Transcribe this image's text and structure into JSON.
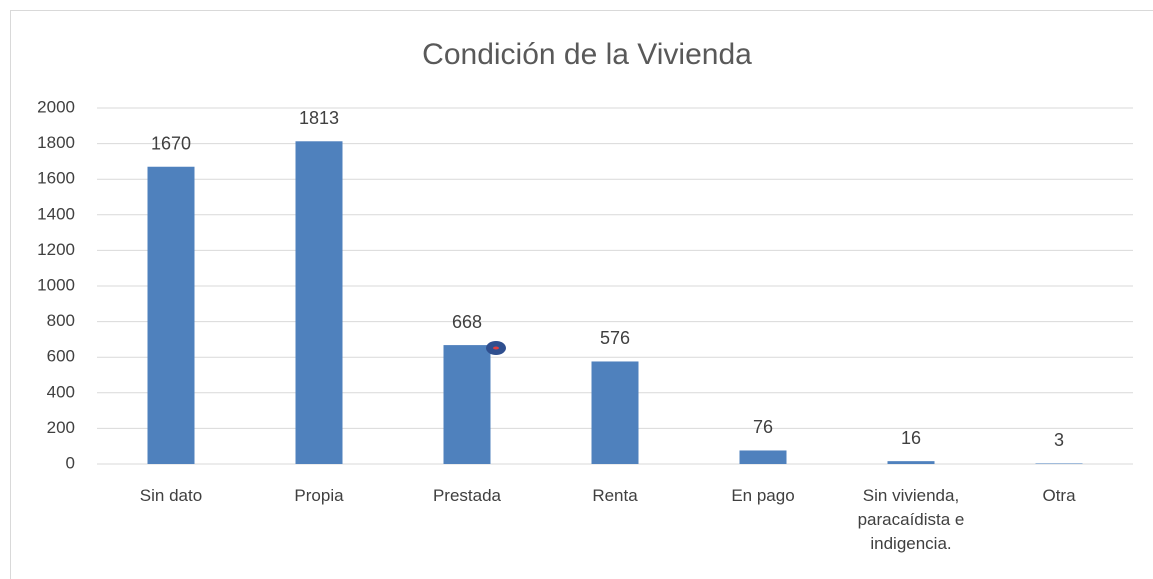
{
  "chart_data": {
    "type": "bar",
    "title": "Condición de la Vivienda",
    "categories": [
      "Sin dato",
      "Propia",
      "Prestada",
      "Renta",
      "En pago",
      "Sin vivienda, paracaídista e indigencia.",
      "Otra"
    ],
    "values": [
      1670,
      1813,
      668,
      576,
      76,
      16,
      3
    ],
    "color": "#4f81bd",
    "ylim": [
      0,
      2000
    ],
    "yticks": [
      0,
      200,
      400,
      600,
      800,
      1000,
      1200,
      1400,
      1600,
      1800,
      2000
    ],
    "grid": true
  }
}
